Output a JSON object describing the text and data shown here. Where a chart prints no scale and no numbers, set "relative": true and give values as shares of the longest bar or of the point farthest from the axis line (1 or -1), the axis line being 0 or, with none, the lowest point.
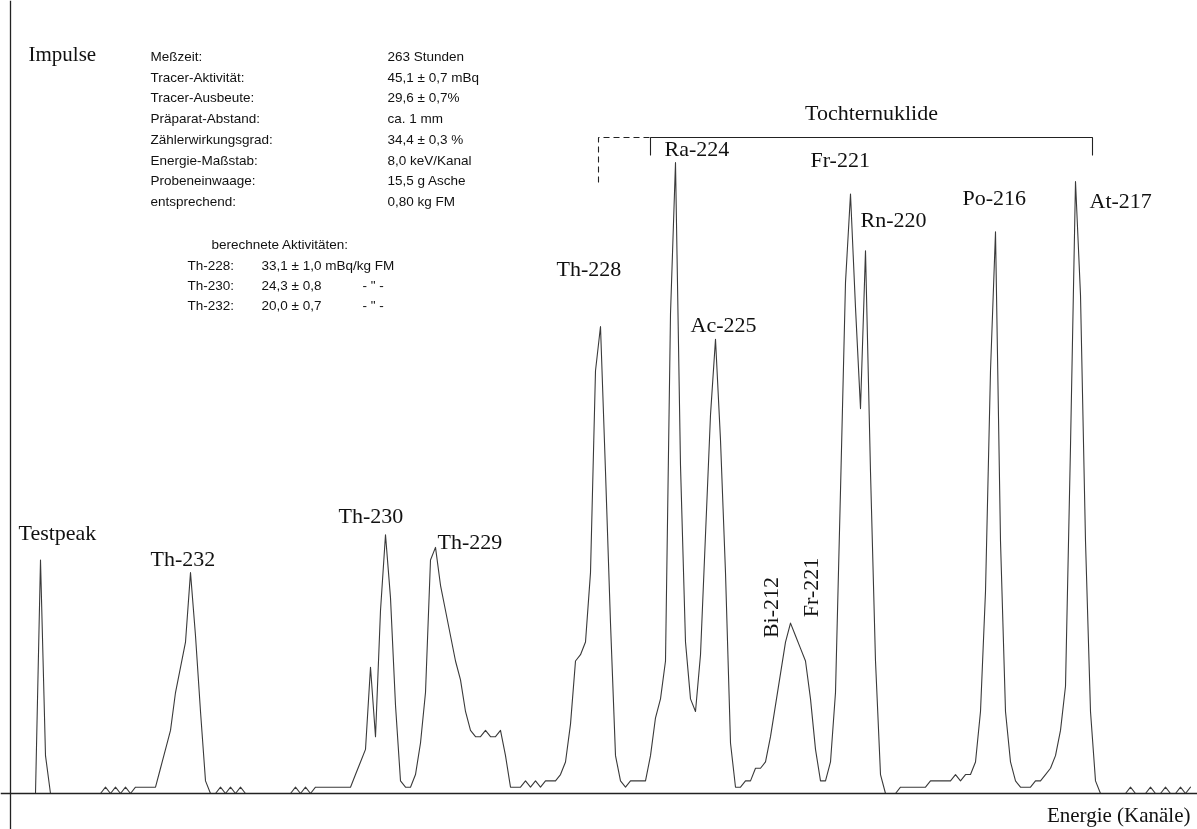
{
  "chart_data": {
    "type": "line",
    "relative": true,
    "tick_labels": false,
    "xlabel": "Energie (Kanäle)",
    "ylabel": "Impulse",
    "categories": [
      null,
      null,
      null,
      null,
      null,
      null,
      null,
      null,
      null,
      null,
      null,
      null,
      null,
      null,
      null,
      null,
      null,
      null,
      null,
      null,
      null,
      null,
      null,
      null,
      null,
      null,
      null,
      null,
      null,
      null,
      null,
      null,
      null,
      null,
      null,
      null,
      null,
      null,
      null,
      null,
      null,
      null,
      null,
      null,
      null,
      null,
      null,
      null,
      null,
      null,
      null,
      null,
      null,
      null,
      null,
      null,
      null,
      null,
      null,
      null,
      null,
      null,
      null,
      null,
      null,
      null,
      null,
      null,
      null,
      null,
      null,
      null,
      null,
      null,
      null,
      null,
      null,
      null,
      null,
      null,
      null,
      null,
      null,
      null,
      null,
      null,
      null,
      null,
      null,
      null,
      null,
      null,
      null,
      null,
      null,
      null,
      null,
      null,
      null,
      null,
      null,
      null,
      null,
      null,
      null,
      null,
      null,
      null,
      null,
      null,
      null,
      null,
      null,
      null,
      null,
      null,
      null,
      null,
      null,
      null,
      null,
      null,
      null,
      null,
      null,
      null,
      null,
      null,
      null,
      null,
      null,
      null,
      null,
      null,
      null,
      null,
      null,
      null,
      null,
      null,
      null,
      null,
      null,
      null,
      null,
      null,
      null,
      null,
      null,
      null,
      null,
      null,
      null,
      null,
      null,
      null,
      null,
      null,
      null,
      null,
      null,
      null,
      null,
      null,
      null,
      null,
      null,
      null,
      null,
      null,
      null,
      null,
      null,
      null,
      null,
      null,
      null,
      null,
      null,
      null,
      null,
      null,
      null,
      null,
      null,
      null,
      null,
      null,
      null,
      null,
      null,
      null,
      null,
      null,
      null,
      null,
      null,
      null,
      null,
      null,
      null,
      null,
      null,
      null,
      null,
      null,
      null,
      null,
      null,
      null,
      null,
      null,
      null,
      null,
      null,
      null,
      null,
      null,
      null,
      null,
      null,
      null,
      null,
      null,
      null,
      null,
      null,
      null,
      null,
      null,
      null,
      null,
      null,
      null,
      null,
      null,
      null
    ],
    "series": [
      {
        "color": "#3a3a3a",
        "values": [
          0,
          0,
          0,
          0,
          0,
          0,
          0.37,
          0.06,
          0,
          0,
          0,
          0,
          0,
          0,
          0,
          0,
          0,
          0,
          0,
          0.01,
          0,
          0.01,
          0,
          0.01,
          0,
          0.01,
          0.01,
          0.01,
          0.01,
          0.01,
          0.04,
          0.07,
          0.1,
          0.16,
          0.2,
          0.24,
          0.35,
          0.25,
          0.13,
          0.02,
          0,
          0,
          0.01,
          0,
          0.01,
          0,
          0.01,
          0,
          0,
          0,
          0,
          0,
          0,
          0,
          0,
          0,
          0,
          0.01,
          0,
          0.01,
          0,
          0.01,
          0.01,
          0.01,
          0.01,
          0.01,
          0.01,
          0.01,
          0.01,
          0.03,
          0.05,
          0.07,
          0.2,
          0.09,
          0.29,
          0.41,
          0.31,
          0.14,
          0.02,
          0.01,
          0.01,
          0.03,
          0.08,
          0.16,
          0.37,
          0.39,
          0.33,
          0.29,
          0.25,
          0.21,
          0.18,
          0.13,
          0.1,
          0.09,
          0.09,
          0.1,
          0.09,
          0.09,
          0.1,
          0.06,
          0.01,
          0.01,
          0.01,
          0.02,
          0.01,
          0.02,
          0.01,
          0.02,
          0.02,
          0.02,
          0.03,
          0.05,
          0.11,
          0.21,
          0.22,
          0.24,
          0.35,
          0.67,
          0.74,
          0.51,
          0.27,
          0.06,
          0.02,
          0.01,
          0.02,
          0.02,
          0.02,
          0.02,
          0.06,
          0.12,
          0.15,
          0.21,
          0.76,
          1.0,
          0.52,
          0.24,
          0.15,
          0.13,
          0.22,
          0.41,
          0.6,
          0.72,
          0.56,
          0.35,
          0.08,
          0.01,
          0.01,
          0.02,
          0.02,
          0.04,
          0.04,
          0.05,
          0.09,
          0.14,
          0.19,
          0.24,
          0.27,
          0.25,
          0.23,
          0.21,
          0.15,
          0.07,
          0.02,
          0.02,
          0.05,
          0.16,
          0.48,
          0.81,
          0.95,
          0.77,
          0.61,
          0.86,
          0.51,
          0.21,
          0.03,
          0,
          0,
          0,
          0.01,
          0.01,
          0.01,
          0.01,
          0.01,
          0.01,
          0.02,
          0.02,
          0.02,
          0.02,
          0.02,
          0.03,
          0.02,
          0.03,
          0.03,
          0.05,
          0.13,
          0.32,
          0.67,
          0.89,
          0.4,
          0.13,
          0.05,
          0.02,
          0.01,
          0.01,
          0.01,
          0.02,
          0.02,
          0.03,
          0.04,
          0.06,
          0.1,
          0.17,
          0.55,
          0.97,
          0.79,
          0.4,
          0.13,
          0.02,
          0,
          0,
          0,
          0,
          0,
          0,
          0.01,
          0,
          0,
          0,
          0.01,
          0,
          0,
          0.01,
          0,
          0,
          0.01,
          0,
          0.01
        ]
      }
    ],
    "annotations": [
      "Meßzeit:",
      "Tracer-Aktivität:",
      "Tracer-Ausbeute:",
      "Präparat-Abstand:",
      "Zählerwirkungsgrad:",
      "Energie-Maßstab:",
      "Probeneinwaage:",
      "entsprechend:",
      "263 Stunden",
      "45,1 ± 0,7 mBq",
      "29,6 ± 0,7%",
      "ca. 1 mm",
      "34,4 ± 0,3 %",
      "8,0 keV/Kanal",
      "15,5 g Asche",
      "0,80 kg FM",
      "berechnete Aktivitäten:",
      "Th-228:",
      "33,1 ± 1,0 mBq/kg FM",
      "Th-230:",
      "24,3 ± 0,8",
      "- \" -",
      "Th-232:",
      "20,0 ± 0,7",
      "- \" -",
      "Testpeak",
      "Th-232",
      "Th-230",
      "Th-229",
      "Th-228",
      "Ra-224",
      "Ac-225",
      "Bi-212",
      "Fr-221",
      "Fr-221",
      "Rn-220",
      "Po-216",
      "At-217",
      "Tochternuklide"
    ]
  }
}
